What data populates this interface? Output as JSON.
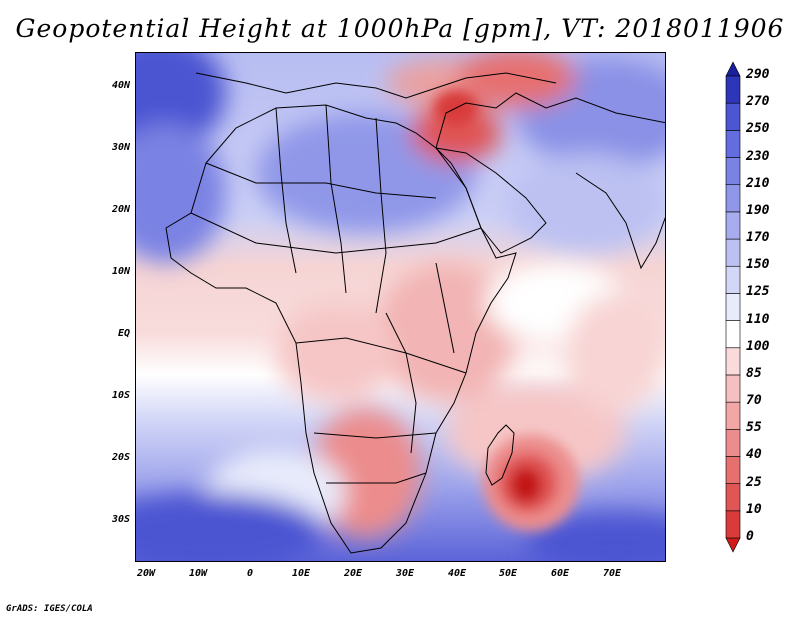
{
  "title": "Geopotential Height at 1000hPa [gpm], VT: 2018011906",
  "credit": "GrADS: IGES/COLA",
  "map": {
    "lat_labels": [
      "40N",
      "30N",
      "20N",
      "10N",
      "EQ",
      "10S",
      "20S",
      "30S"
    ],
    "lon_labels": [
      "20W",
      "10W",
      "0",
      "10E",
      "20E",
      "30E",
      "40E",
      "50E",
      "60E",
      "70E"
    ]
  },
  "colorbar": {
    "labels": [
      "290",
      "270",
      "250",
      "230",
      "210",
      "190",
      "170",
      "150",
      "125",
      "110",
      "100",
      "85",
      "70",
      "55",
      "40",
      "25",
      "10",
      "0"
    ],
    "colors": [
      "#d11a1a",
      "#d93a3a",
      "#e05555",
      "#e67070",
      "#ec8c8c",
      "#f2a6a6",
      "#f6c0c0",
      "#fadada",
      "#ffffff",
      "#e8ebfb",
      "#d2d6f7",
      "#bcc1f2",
      "#a6acee",
      "#9097e8",
      "#7a82e3",
      "#646de0",
      "#4c55d2",
      "#2d35b8",
      "#1a1f9e"
    ]
  }
}
